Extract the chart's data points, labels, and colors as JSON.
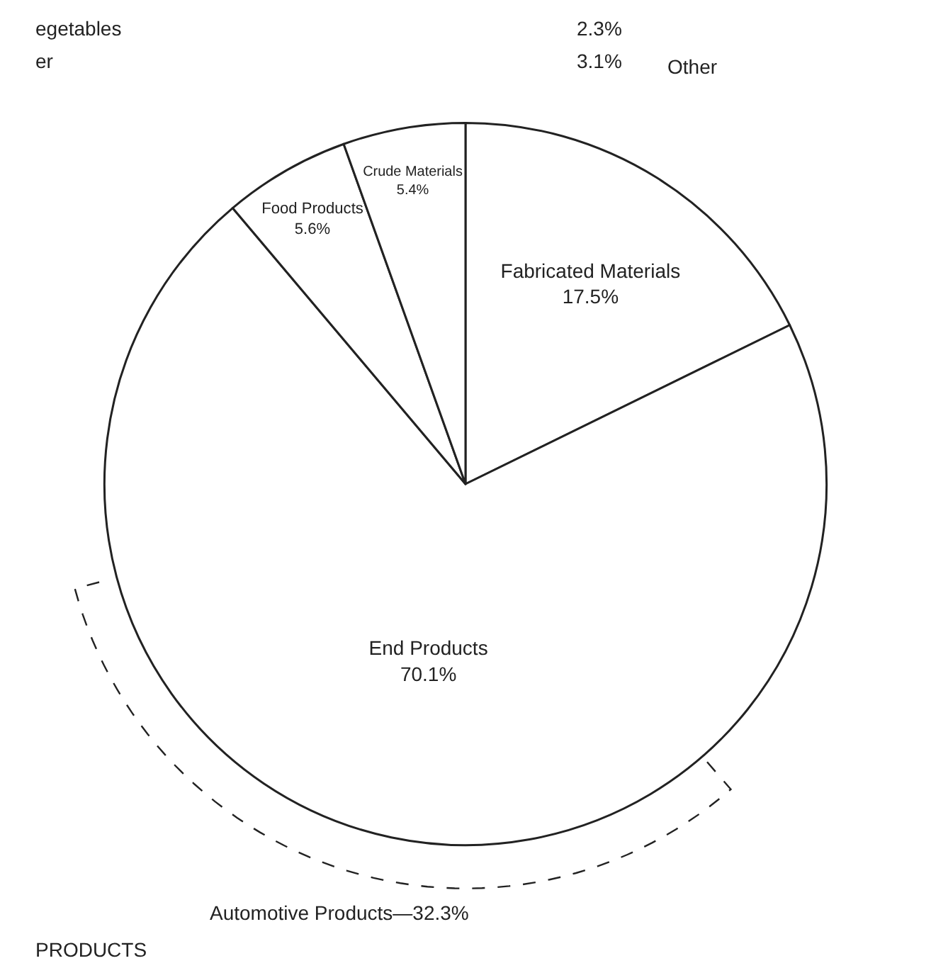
{
  "chart_data": {
    "type": "pie",
    "categories": [
      "Fabricated Materials",
      "End Products",
      "Food Products",
      "Crude Materials"
    ],
    "values": [
      17.5,
      70.1,
      5.6,
      5.4
    ],
    "value_labels": [
      "17.5%",
      "70.1%",
      "5.6%",
      "5.4%"
    ],
    "colors": [
      "#ffffff",
      "#ffffff",
      "#ffffff",
      "#ffffff"
    ],
    "legend": false,
    "annotations": [
      "egetables",
      "2.3%",
      "er",
      "3.1%",
      "Other",
      "PRODUCTS",
      "Automotive Products—32.3%"
    ]
  }
}
